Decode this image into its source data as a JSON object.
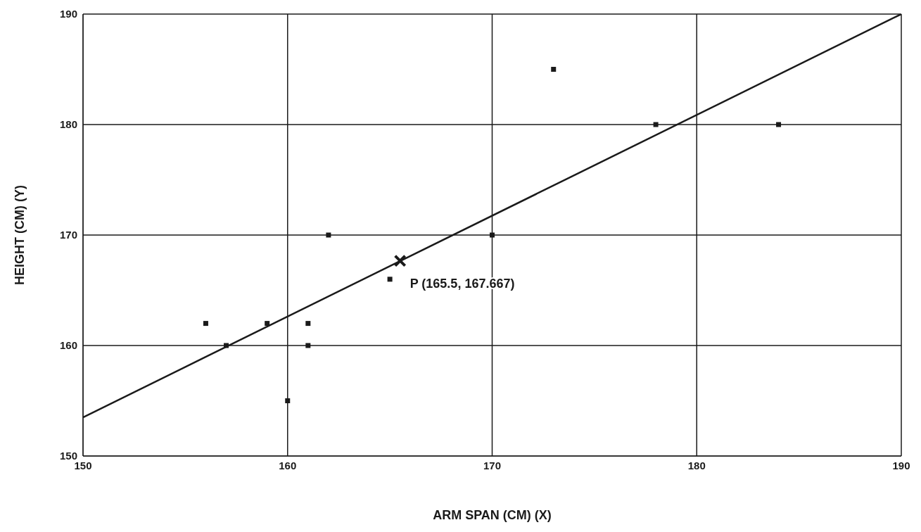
{
  "chart_data": {
    "type": "scatter",
    "xlabel": "ARM SPAN (CM) (X)",
    "ylabel": "HEIGHT (CM) (Y)",
    "xlim": [
      150,
      190
    ],
    "xticks": [
      150,
      160,
      170,
      180,
      190
    ],
    "ylim": [
      150,
      190
    ],
    "yticks": [
      150,
      160,
      170,
      180,
      190
    ],
    "grid": true,
    "series": [
      {
        "marker": "square",
        "color": "#1a1a1a",
        "x": [
          156,
          157,
          159,
          160,
          161,
          161,
          162,
          165,
          170,
          173,
          178,
          184
        ],
        "values": [
          162,
          160,
          162,
          155,
          162,
          160,
          170,
          166,
          170,
          185,
          180,
          180
        ]
      },
      {
        "type": "line",
        "marker": "none",
        "color": "#1a1a1a",
        "x": [
          150,
          190
        ],
        "values": [
          153.5,
          190
        ]
      },
      {
        "marker": "cross",
        "color": "#1a1a1a",
        "x": [
          165.5
        ],
        "values": [
          167.667
        ]
      }
    ],
    "annotations": [
      {
        "text": "P (165.5, 167.667)",
        "x": 165.5,
        "y": 167.667
      }
    ]
  }
}
